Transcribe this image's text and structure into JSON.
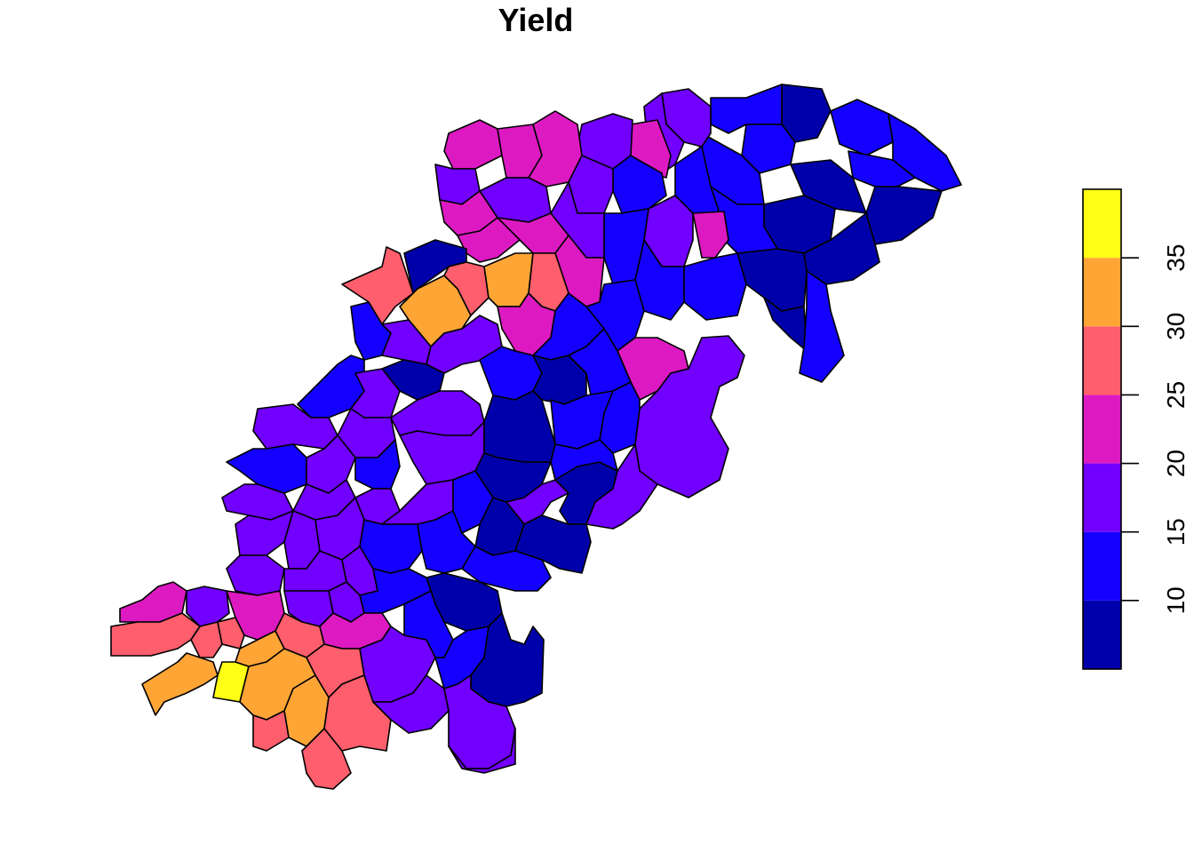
{
  "map": {
    "title": "Yield"
  },
  "legend": {
    "bins": [
      {
        "from": 5,
        "to": 10,
        "color": "#0000AA"
      },
      {
        "from": 10,
        "to": 15,
        "color": "#1400FF"
      },
      {
        "from": 15,
        "to": 20,
        "color": "#7100FF"
      },
      {
        "from": 20,
        "to": 25,
        "color": "#DD1AC2"
      },
      {
        "from": 25,
        "to": 30,
        "color": "#FF5E6C"
      },
      {
        "from": 30,
        "to": 35,
        "color": "#FFA536"
      },
      {
        "from": 35,
        "to": 40,
        "color": "#FFFF15"
      }
    ],
    "ticks": [
      "10",
      "15",
      "20",
      "25",
      "30",
      "35"
    ],
    "tick_values": [
      10,
      15,
      20,
      25,
      30,
      35
    ]
  }
}
